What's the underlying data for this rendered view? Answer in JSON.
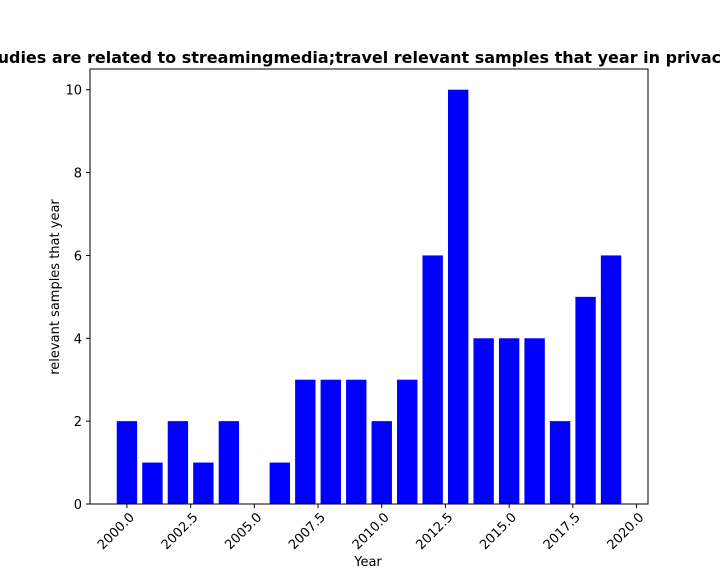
{
  "chart_data": {
    "type": "bar",
    "title": "Studies are related to streamingmedia;travel relevant samples that year in privacy",
    "xlabel": "Year",
    "ylabel": "relevant samples that year",
    "x": [
      2000,
      2001,
      2002,
      2003,
      2004,
      2005,
      2006,
      2007,
      2008,
      2009,
      2010,
      2011,
      2012,
      2013,
      2014,
      2015,
      2016,
      2017,
      2018,
      2019
    ],
    "values": [
      2,
      1,
      2,
      1,
      2,
      0,
      1,
      3,
      3,
      3,
      2,
      3,
      6,
      10,
      4,
      4,
      4,
      2,
      5,
      6
    ],
    "xlim": [
      1998.55,
      2020.45
    ],
    "ylim": [
      0,
      10.5
    ],
    "xticks": [
      2000.0,
      2002.5,
      2005.0,
      2007.5,
      2010.0,
      2012.5,
      2015.0,
      2017.5,
      2020.0
    ],
    "xtick_labels": [
      "2000.0",
      "2002.5",
      "2005.0",
      "2007.5",
      "2010.0",
      "2012.5",
      "2015.0",
      "2017.5",
      "2020.0"
    ],
    "yticks": [
      0,
      2,
      4,
      6,
      8,
      10
    ],
    "ytick_labels": [
      "0",
      "2",
      "4",
      "6",
      "8",
      "10"
    ],
    "bar_color": "#0000ff",
    "grid": false,
    "legend": "none"
  }
}
